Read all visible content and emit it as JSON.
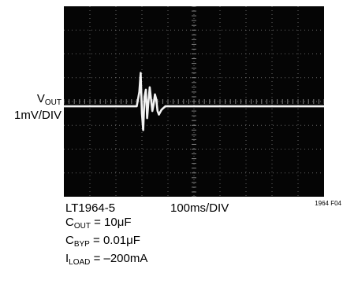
{
  "chart_data": {
    "type": "line",
    "title": "",
    "ylabel": {
      "symbol": "V",
      "subscript": "OUT",
      "scale": "1mV/DIV"
    },
    "xlabel": "100ms/DIV",
    "divisions": {
      "x": 10,
      "y": 8
    },
    "grid": true,
    "x_unit": "ms",
    "y_unit": "mV",
    "x_per_div": 100,
    "y_per_div": 1,
    "baseline_div": 4.2,
    "series": [
      {
        "x": [
          0,
          200,
          280,
          290,
          295,
          300,
          305,
          310,
          315,
          320,
          325,
          330,
          335,
          340,
          345,
          350,
          355,
          360,
          365,
          370,
          375,
          380,
          385,
          390,
          400,
          420,
          500,
          700,
          1000
        ],
        "y": [
          0.0,
          0.0,
          0.0,
          0.6,
          1.4,
          -0.3,
          -1.0,
          0.4,
          0.7,
          -0.5,
          0.2,
          0.8,
          0.3,
          -0.2,
          0.1,
          0.5,
          0.3,
          -0.2,
          -0.35,
          -0.25,
          -0.15,
          -0.1,
          -0.05,
          0.0,
          0.0,
          0.0,
          0.0,
          0.0,
          0.0
        ]
      }
    ]
  },
  "annotations": {
    "part": "LT1964-5",
    "conditions": [
      {
        "symbol": "C",
        "subscript": "OUT",
        "rest": " = 10μF"
      },
      {
        "symbol": "C",
        "subscript": "BYP",
        "rest": " = 0.01μF"
      },
      {
        "symbol": "I",
        "subscript": "LOAD",
        "rest": " = –200mA"
      }
    ],
    "figure_id": "1964 F04"
  },
  "colors": {
    "screen": "#050505",
    "grid": "#7f7f7f",
    "trace": "#f2f2f2"
  }
}
